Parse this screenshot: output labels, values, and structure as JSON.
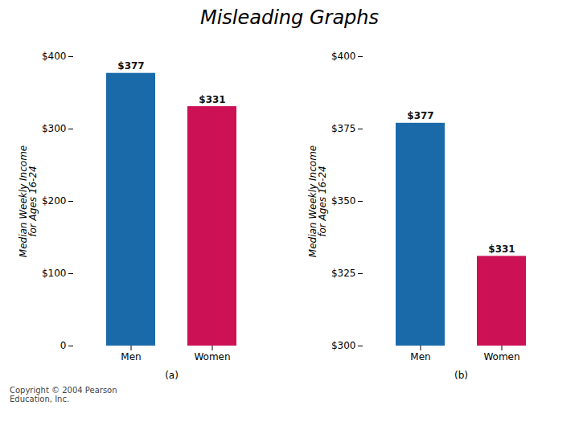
{
  "title": "Misleading Graphs",
  "annotations": [
    "Copyright © 2004 Pearson\nEducation, Inc."
  ],
  "chart_data": [
    {
      "type": "bar",
      "xlabel": "(a)",
      "ylabel": "Median Weekly Income\nfor Ages 16-24",
      "categories": [
        "Men",
        "Women"
      ],
      "values": [
        377,
        331
      ],
      "value_labels": [
        "$377",
        "$331"
      ],
      "data_labels": true,
      "colors": [
        "#1a6aaa",
        "#cc1155"
      ],
      "grid": false,
      "ylim": [
        0,
        400
      ],
      "yticks": [
        0,
        {
          "value": 100,
          "label": "$100"
        },
        {
          "value": 200,
          "label": "$200"
        },
        {
          "value": 300,
          "label": "$300"
        },
        {
          "value": 400,
          "label": "$400"
        }
      ]
    },
    {
      "type": "bar",
      "xlabel": "(b)",
      "ylabel": "Median Weekly Income\nfor Ages 16-24",
      "categories": [
        "Men",
        "Women"
      ],
      "values": [
        377,
        331
      ],
      "value_labels": [
        "$377",
        "$331"
      ],
      "data_labels": true,
      "colors": [
        "#1a6aaa",
        "#cc1155"
      ],
      "grid": false,
      "ylim": [
        300,
        400
      ],
      "yticks": [
        {
          "value": 300,
          "label": "$300"
        },
        {
          "value": 325,
          "label": "$325"
        },
        {
          "value": 350,
          "label": "$350"
        },
        {
          "value": 375,
          "label": "$375"
        },
        {
          "value": 400,
          "label": "$400"
        }
      ]
    }
  ]
}
